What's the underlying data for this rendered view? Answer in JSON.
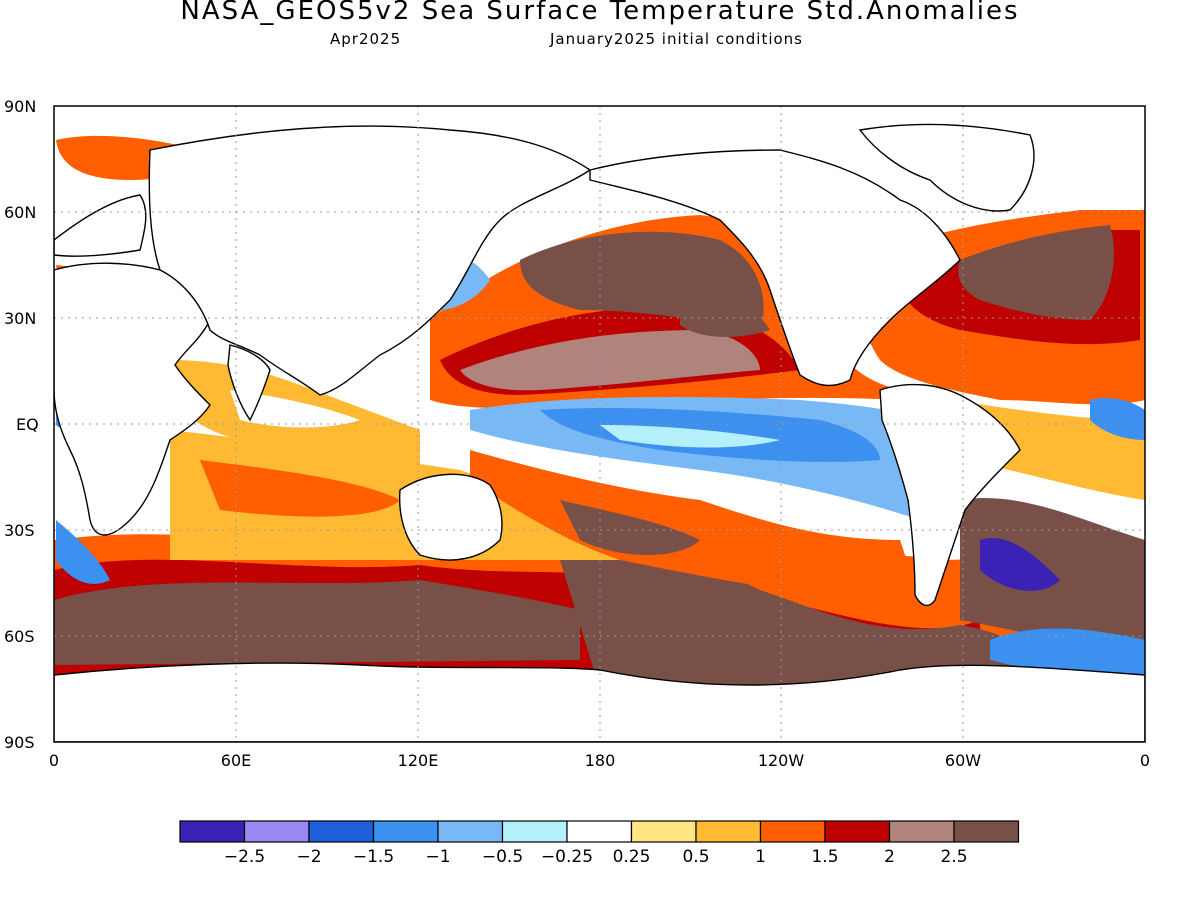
{
  "title": "NASA_GEOS5v2 Sea Surface Temperature Std.Anomalies",
  "subtitle_left": "Apr2025",
  "subtitle_right": "January2025 initial conditions",
  "map": {
    "projection": "equirectangular",
    "lon_range": [
      0,
      360
    ],
    "lat_range": [
      -90,
      90
    ],
    "grid": true,
    "y_ticks": [
      "90N",
      "60N",
      "30N",
      "EQ",
      "30S",
      "60S",
      "90S"
    ],
    "x_ticks": [
      "0",
      "60E",
      "120E",
      "180",
      "120W",
      "60W",
      "0"
    ]
  },
  "legend": {
    "colors": [
      "#3c22b4",
      "#9a87f3",
      "#1f5fdc",
      "#3c91f0",
      "#78b9f5",
      "#b4f0fa",
      "#ffffff",
      "#ffe682",
      "#ffb932",
      "#ff5f00",
      "#be0000",
      "#b0847c",
      "#785048"
    ],
    "labels": [
      "-2.5",
      "-2",
      "-1.5",
      "-1",
      "-0.5",
      "-0.25",
      "0.25",
      "0.5",
      "1",
      "1.5",
      "2",
      "2.5"
    ]
  }
}
